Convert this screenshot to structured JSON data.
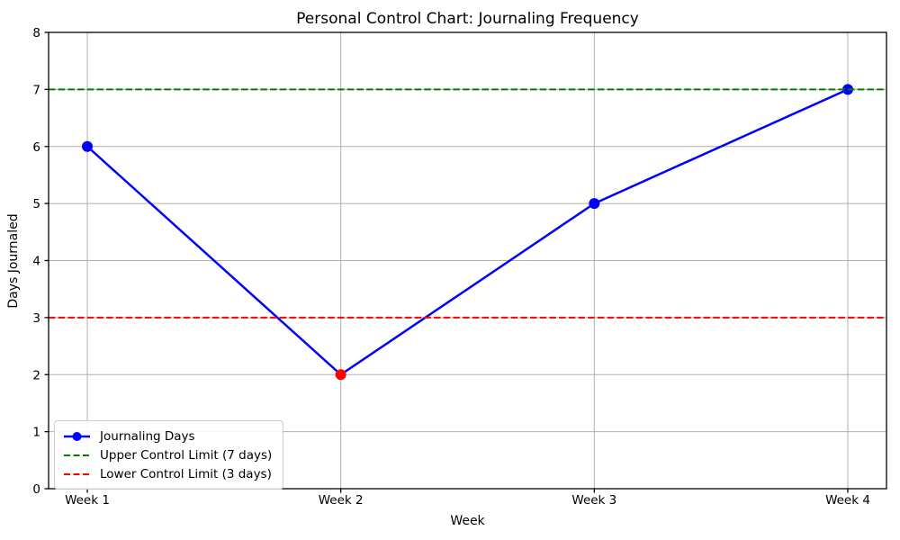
{
  "chart_data": {
    "type": "line",
    "title": "Personal Control Chart: Journaling Frequency",
    "xlabel": "Week",
    "ylabel": "Days Journaled",
    "categories": [
      "Week 1",
      "Week 2",
      "Week 3",
      "Week 4"
    ],
    "series": [
      {
        "name": "Journaling Days",
        "values": [
          6,
          2,
          5,
          7
        ],
        "color": "#0000ff",
        "style": "solid",
        "line_width": 2.5,
        "marker": "circle",
        "marker_size": 6,
        "marker_colors": [
          "#0000ff",
          "#ff0000",
          "#0000ff",
          "#0000ff"
        ]
      },
      {
        "name": "Upper Control Limit (7 days)",
        "values": [
          7,
          7,
          7,
          7
        ],
        "color": "#008000",
        "style": "dashed",
        "line_width": 2
      },
      {
        "name": "Lower Control Limit (3 days)",
        "values": [
          3,
          3,
          3,
          3
        ],
        "color": "#ff0000",
        "style": "dashed",
        "line_width": 2
      }
    ],
    "ylim": [
      0,
      8
    ],
    "yticks": [
      0,
      1,
      2,
      3,
      4,
      5,
      6,
      7,
      8
    ],
    "grid": true,
    "grid_color": "#b0b0b0",
    "axis_color": "#000000",
    "legend_position": "lower left"
  }
}
